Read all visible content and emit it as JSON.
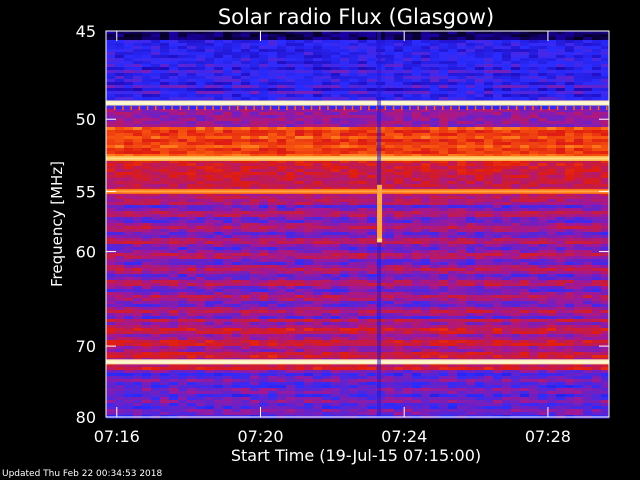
{
  "chart_data": {
    "type": "heatmap",
    "title": "Solar radio Flux (Glasgow)",
    "xlabel": "Start Time (19-Jul-15 07:15:00)",
    "ylabel": "Frequency [MHz]",
    "x_ticks": [
      "07:16",
      "07:20",
      "07:24",
      "07:28"
    ],
    "x_tick_minutes": [
      1,
      5,
      9,
      13
    ],
    "xlim_minutes": [
      0.7,
      14.7
    ],
    "y_ticks": [
      45,
      50,
      55,
      60,
      70,
      80
    ],
    "ylim": [
      45,
      80
    ],
    "y_scale": "reciprocal",
    "colormap": [
      "#000000",
      "#1c00a8",
      "#2a2cff",
      "#a01898",
      "#e01c10",
      "#ff6a10",
      "#ffd060",
      "#fff8d8"
    ],
    "bright_bands_mhz": [
      {
        "freq": 49.0,
        "level": 0.97
      },
      {
        "freq": 52.6,
        "level": 0.82
      },
      {
        "freq": 55.0,
        "level": 0.72
      },
      {
        "freq": 72.0,
        "level": 0.95
      }
    ],
    "burst": {
      "time_minutes": 8.3,
      "freq_range_mhz": [
        54.5,
        59.0
      ]
    }
  },
  "footer_text": "Updated Thu Feb 22 00:34:53 2018"
}
